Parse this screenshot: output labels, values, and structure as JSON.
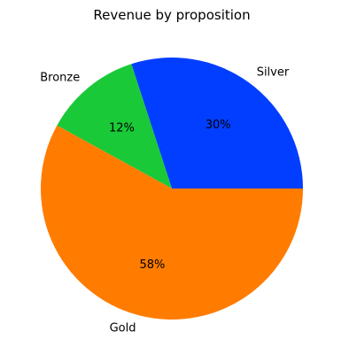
{
  "chart_data": {
    "type": "pie",
    "title": "Revenue by proposition",
    "slices": [
      {
        "label": "Silver",
        "value": 30,
        "pct_label": "30%",
        "color": "#023eff"
      },
      {
        "label": "Bronze",
        "value": 12,
        "pct_label": "12%",
        "color": "#1ac938"
      },
      {
        "label": "Gold",
        "value": 58,
        "pct_label": "58%",
        "color": "#ff7c00"
      }
    ],
    "start_angle_deg": 0,
    "direction": "counterclockwise",
    "legend": "none"
  }
}
